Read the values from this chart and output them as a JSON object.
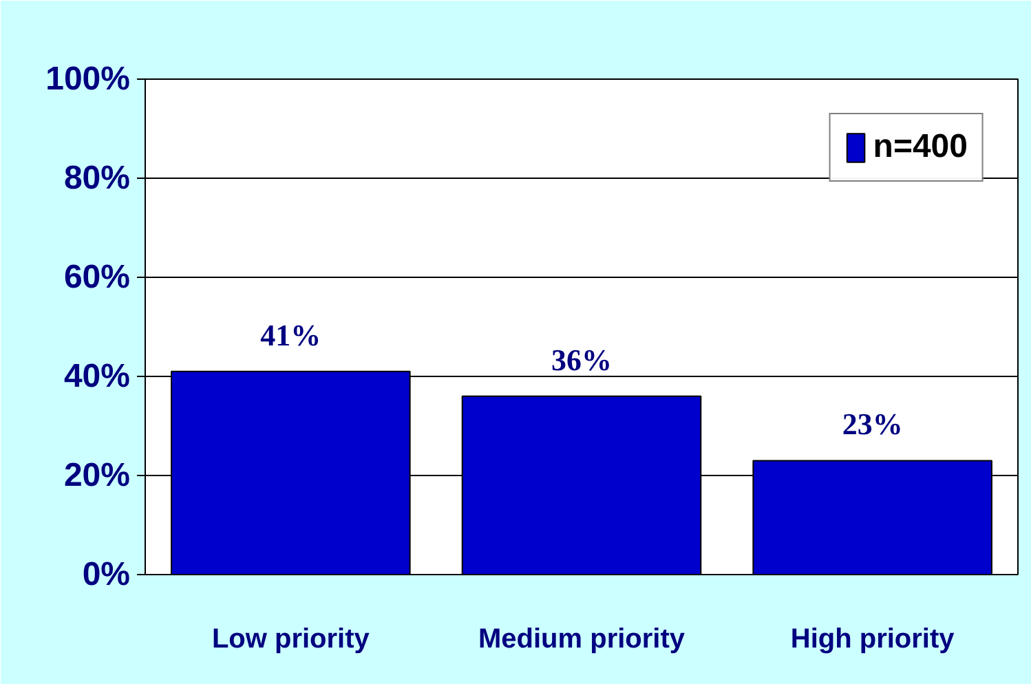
{
  "chart_data": {
    "type": "bar",
    "categories": [
      "Low priority",
      "Medium priority",
      "High priority"
    ],
    "series": [
      {
        "name": "n=400",
        "color": "#0000cc",
        "values": [
          41,
          36,
          23
        ],
        "value_labels": [
          "41%",
          "36%",
          "23%"
        ]
      }
    ],
    "ylim": [
      0,
      100
    ],
    "yticks": [
      {
        "value": 0,
        "label": "0%"
      },
      {
        "value": 20,
        "label": "20%"
      },
      {
        "value": 40,
        "label": "40%"
      },
      {
        "value": 60,
        "label": "60%"
      },
      {
        "value": 80,
        "label": "80%"
      },
      {
        "value": 100,
        "label": "100%"
      }
    ],
    "grid": "y",
    "legend": "top right"
  }
}
